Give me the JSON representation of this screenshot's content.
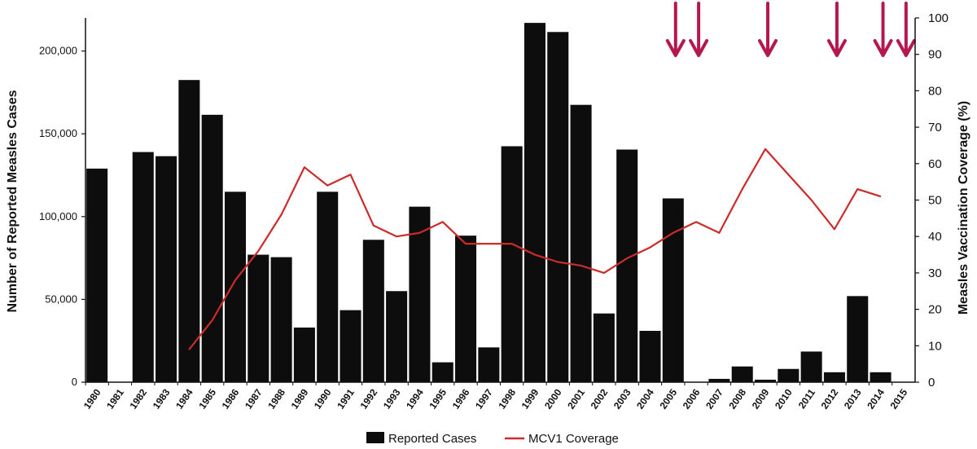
{
  "chart_data": {
    "type": "bar",
    "xlabel": "",
    "ylabel_left": "Number of Reported Measles Cases",
    "ylabel_right": "Measles Vaccination Coverage (%)",
    "categories": [
      "1980",
      "1981",
      "1982",
      "1983",
      "1984",
      "1985",
      "1986",
      "1987",
      "1988",
      "1989",
      "1990",
      "1991",
      "1992",
      "1993",
      "1994",
      "1995",
      "1996",
      "1997",
      "1998",
      "1999",
      "2000",
      "2001",
      "2002",
      "2003",
      "2004",
      "2005",
      "2006",
      "2007",
      "2008",
      "2009",
      "2010",
      "2011",
      "2012",
      "2013",
      "2014",
      "2015"
    ],
    "y_left_ticks": [
      0,
      50000,
      100000,
      150000,
      200000
    ],
    "y_left_tick_labels": [
      "0",
      "50,000",
      "100,000",
      "150,000",
      "200,000"
    ],
    "y_left_lim": [
      0,
      220000
    ],
    "y_right_ticks": [
      0,
      10,
      20,
      30,
      40,
      50,
      60,
      70,
      80,
      90,
      100
    ],
    "y_right_tick_labels": [
      "0",
      "10",
      "20",
      "30",
      "40",
      "50",
      "60",
      "70",
      "80",
      "90",
      "100"
    ],
    "y_right_lim": [
      0,
      100
    ],
    "series": [
      {
        "name": "Reported Cases",
        "kind": "bar",
        "color": "#0d0d0d",
        "axis": "left",
        "values": [
          129000,
          null,
          139000,
          136500,
          182500,
          161500,
          115000,
          77000,
          75500,
          33000,
          115000,
          43500,
          86000,
          55000,
          106000,
          12000,
          88500,
          21000,
          142500,
          217000,
          211500,
          167500,
          41500,
          140500,
          31000,
          111000,
          0,
          2000,
          9500,
          1500,
          8000,
          18500,
          6000,
          52000,
          6000,
          null
        ]
      },
      {
        "name": "MCV1 Coverage",
        "kind": "line",
        "color": "#cc2b2b",
        "axis": "right",
        "values": [
          null,
          null,
          null,
          null,
          9,
          17,
          28,
          36,
          46,
          59,
          54,
          57,
          43,
          40,
          41,
          44,
          38,
          38,
          38,
          35,
          33,
          32,
          30,
          34,
          37,
          41,
          44,
          41,
          53,
          64,
          57,
          50,
          42,
          53,
          51,
          null
        ]
      }
    ],
    "annotation_arrows": {
      "color": "#b5174f",
      "years": [
        "2005",
        "2006",
        "2009",
        "2012",
        "2014",
        "2015"
      ]
    },
    "legend": {
      "position": "bottom-center"
    },
    "grid": false
  }
}
